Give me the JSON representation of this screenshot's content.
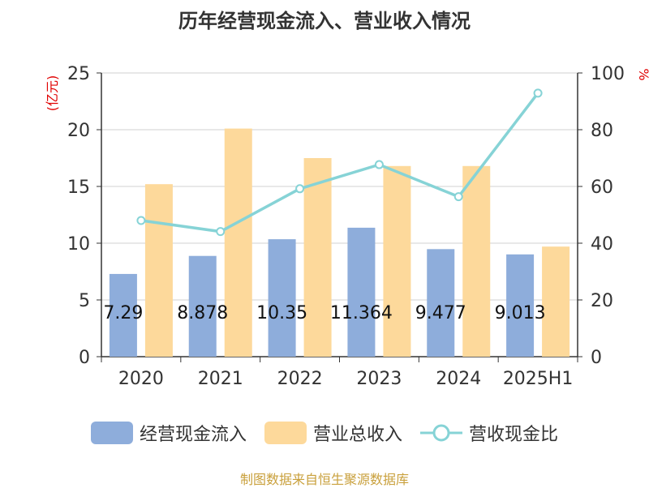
{
  "chart_data": {
    "type": "bar",
    "title": "历年经营现金流入、营业收入情况",
    "categories": [
      "2020",
      "2021",
      "2022",
      "2023",
      "2024",
      "2025H1"
    ],
    "series": [
      {
        "name": "经营现金流入",
        "type": "bar",
        "axis": "left",
        "color": "#8eaddb",
        "values": [
          7.29,
          8.878,
          10.35,
          11.364,
          9.477,
          9.013
        ],
        "labels": [
          "7.29",
          "8.878",
          "10.35",
          "11.364",
          "9.477",
          "9.013"
        ]
      },
      {
        "name": "营业总收入",
        "type": "bar",
        "axis": "left",
        "color": "#fdd99b",
        "values": [
          15.2,
          20.1,
          17.5,
          16.8,
          16.8,
          9.7
        ]
      },
      {
        "name": "营收现金比",
        "type": "line",
        "axis": "right",
        "color": "#86d3d6",
        "values": [
          48.0,
          44.1,
          59.2,
          67.7,
          56.4,
          92.9
        ]
      }
    ],
    "y_left": {
      "label": "(亿元)",
      "ylim": [
        0,
        25
      ],
      "ticks": [
        0,
        5,
        10,
        15,
        20,
        25
      ]
    },
    "y_right": {
      "label": "%",
      "ylim": [
        0,
        100
      ],
      "ticks": [
        0,
        20,
        40,
        60,
        80,
        100
      ]
    },
    "grid": true,
    "legend_position": "bottom"
  },
  "source": "制图数据来自恒生聚源数据库"
}
